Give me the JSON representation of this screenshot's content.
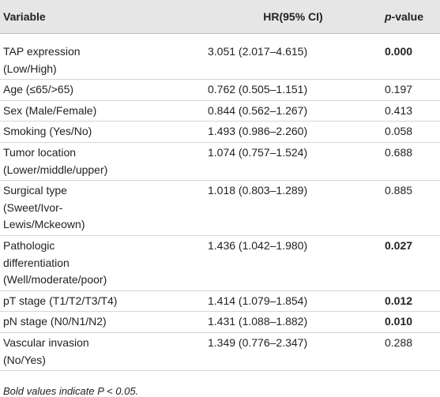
{
  "table": {
    "header": [
      "Variable",
      "HR(95% CI)",
      {
        "italic": "p",
        "rest": "-value"
      }
    ],
    "rows": [
      {
        "variable": [
          "TAP expression",
          "(Low/High)"
        ],
        "hr": "3.051 (2.017–4.615)",
        "p": "0.000",
        "bold": true
      },
      {
        "variable": [
          "Age (≤65/>65)"
        ],
        "hr": "0.762 (0.505–1.151)",
        "p": "0.197",
        "bold": false
      },
      {
        "variable": [
          "Sex (Male/Female)"
        ],
        "hr": "0.844 (0.562–1.267)",
        "p": "0.413",
        "bold": false
      },
      {
        "variable": [
          "Smoking (Yes/No)"
        ],
        "hr": "1.493 (0.986–2.260)",
        "p": "0.058",
        "bold": false
      },
      {
        "variable": [
          "Tumor location",
          "(Lower/middle/upper)"
        ],
        "hr": "1.074 (0.757–1.524)",
        "p": "0.688",
        "bold": false
      },
      {
        "variable": [
          "Surgical type",
          "(Sweet/Ivor-",
          "Lewis/Mckeown)"
        ],
        "hr": "1.018 (0.803–1.289)",
        "p": "0.885",
        "bold": false
      },
      {
        "variable": [
          "Pathologic",
          "differentiation",
          "(Well/moderate/poor)"
        ],
        "hr": "1.436 (1.042–1.980)",
        "p": "0.027",
        "bold": true
      },
      {
        "variable": [
          "pT stage (T1/T2/T3/T4)"
        ],
        "hr": "1.414 (1.079–1.854)",
        "p": "0.012",
        "bold": true
      },
      {
        "variable": [
          "pN stage (N0/N1/N2)"
        ],
        "hr": "1.431 (1.088–1.882)",
        "p": "0.010",
        "bold": true
      },
      {
        "variable": [
          "Vascular invasion",
          "(No/Yes)"
        ],
        "hr": "1.349 (0.776–2.347)",
        "p": "0.288",
        "bold": false
      }
    ]
  },
  "footnote": "Bold values indicate P < 0.05."
}
